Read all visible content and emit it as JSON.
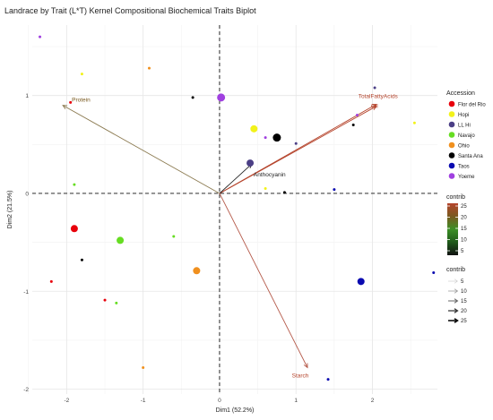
{
  "chart_data": {
    "type": "scatter",
    "title": "Landrace by Trait (L*T) Kernel Compositional Biochemical Traits Biplot",
    "xlabel": "Dim1 (52.2%)",
    "ylabel": "Dim2 (21.5%)",
    "xlim": [
      -2.45,
      2.85
    ],
    "ylim": [
      -2.05,
      1.72
    ],
    "grid": true,
    "x_ticks": [
      -2,
      -1,
      0,
      1,
      2
    ],
    "x_tick_labels": [
      "-2",
      "-1",
      "0",
      "1",
      "2"
    ],
    "y_ticks": [
      -2,
      -1,
      0,
      1
    ],
    "y_tick_labels": [
      "-2",
      "-1",
      "0",
      "1"
    ],
    "legend_accession": {
      "title": "Accession",
      "placement": "right",
      "items": [
        {
          "name": "Flor del Rio",
          "color": "#e8000b"
        },
        {
          "name": "Hopi",
          "color": "#f2f21a"
        },
        {
          "name": "LL Hi",
          "color": "#4b3f86"
        },
        {
          "name": "Navajo",
          "color": "#66dd22"
        },
        {
          "name": "Ohio",
          "color": "#f0901e"
        },
        {
          "name": "Santa Ana",
          "color": "#000000"
        },
        {
          "name": "Taos",
          "color": "#0a0ab0"
        },
        {
          "name": "Yoeme",
          "color": "#a040e0"
        }
      ]
    },
    "legend_contrib_color": {
      "title": "contrib",
      "ticks": [
        "25",
        "20",
        "15",
        "10",
        "5"
      ],
      "gradient": [
        "#b5442c",
        "#7a5a20",
        "#3c8f26",
        "#1f5a1a",
        "#111111"
      ]
    },
    "legend_contrib_arrows": {
      "title": "contrib",
      "items": [
        "5",
        "10",
        "15",
        "20",
        "25"
      ]
    },
    "points": [
      {
        "accession": "Flor del Rio",
        "x": -1.95,
        "y": 0.93,
        "size": 3
      },
      {
        "accession": "Flor del Rio",
        "x": -1.9,
        "y": -0.36,
        "size": 8
      },
      {
        "accession": "Flor del Rio",
        "x": -2.2,
        "y": -0.9,
        "size": 3
      },
      {
        "accession": "Flor del Rio",
        "x": -1.5,
        "y": -1.09,
        "size": 3
      },
      {
        "accession": "Hopi",
        "x": -1.8,
        "y": 1.22,
        "size": 3
      },
      {
        "accession": "Hopi",
        "x": 0.45,
        "y": 0.66,
        "size": 8
      },
      {
        "accession": "Hopi",
        "x": 0.6,
        "y": 0.05,
        "size": 3
      },
      {
        "accession": "Hopi",
        "x": 2.55,
        "y": 0.72,
        "size": 3
      },
      {
        "accession": "LL Hi",
        "x": 0.4,
        "y": 0.31,
        "size": 8
      },
      {
        "accession": "LL Hi",
        "x": 1.0,
        "y": 0.51,
        "size": 3
      },
      {
        "accession": "LL Hi",
        "x": 2.03,
        "y": 1.08,
        "size": 3
      },
      {
        "accession": "Navajo",
        "x": -1.9,
        "y": 0.09,
        "size": 3
      },
      {
        "accession": "Navajo",
        "x": -1.3,
        "y": -0.48,
        "size": 8
      },
      {
        "accession": "Navajo",
        "x": -0.6,
        "y": -0.44,
        "size": 3
      },
      {
        "accession": "Navajo",
        "x": -1.35,
        "y": -1.12,
        "size": 3
      },
      {
        "accession": "Ohio",
        "x": -0.92,
        "y": 1.28,
        "size": 3
      },
      {
        "accession": "Ohio",
        "x": -0.3,
        "y": -0.79,
        "size": 8
      },
      {
        "accession": "Ohio",
        "x": -1.0,
        "y": -1.78,
        "size": 3
      },
      {
        "accession": "Santa Ana",
        "x": -0.35,
        "y": 0.98,
        "size": 3
      },
      {
        "accession": "Santa Ana",
        "x": 0.75,
        "y": 0.57,
        "size": 9
      },
      {
        "accession": "Santa Ana",
        "x": 1.75,
        "y": 0.7,
        "size": 3
      },
      {
        "accession": "Santa Ana",
        "x": 0.85,
        "y": 0.01,
        "size": 3
      },
      {
        "accession": "Santa Ana",
        "x": -1.8,
        "y": -0.68,
        "size": 3
      },
      {
        "accession": "Taos",
        "x": 1.5,
        "y": 0.04,
        "size": 3
      },
      {
        "accession": "Taos",
        "x": 1.85,
        "y": -0.9,
        "size": 8
      },
      {
        "accession": "Taos",
        "x": 2.8,
        "y": -0.81,
        "size": 3
      },
      {
        "accession": "Taos",
        "x": 1.42,
        "y": -1.9,
        "size": 3
      },
      {
        "accession": "Yoeme",
        "x": -2.35,
        "y": 1.6,
        "size": 3
      },
      {
        "accession": "Yoeme",
        "x": 0.02,
        "y": 0.98,
        "size": 9
      },
      {
        "accession": "Yoeme",
        "x": 0.6,
        "y": 0.57,
        "size": 3
      },
      {
        "accession": "Yoeme",
        "x": 1.8,
        "y": 0.8,
        "size": 3
      }
    ],
    "arrows": [
      {
        "label": "Protein",
        "x": -2.05,
        "y": 0.9,
        "color": "#8b7a50",
        "label_color": "#7a5a20"
      },
      {
        "label": "TotalFattyAcids",
        "x": 2.05,
        "y": 0.91,
        "color": "#b5442c",
        "label_color": "#b5442c"
      },
      {
        "label": "Oil",
        "x": 2.05,
        "y": 0.89,
        "color": "#b5442c",
        "label_color": "#b5442c"
      },
      {
        "label": "Anthocyanin",
        "x": 0.42,
        "y": 0.3,
        "color": "#222222",
        "label_color": "#222222"
      },
      {
        "label": "Starch",
        "x": 1.15,
        "y": -1.78,
        "color": "#b55a4a",
        "label_color": "#b5442c"
      }
    ]
  }
}
